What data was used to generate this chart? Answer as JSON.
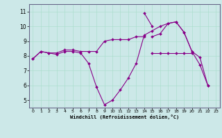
{
  "title": "",
  "xlabel": "Windchill (Refroidissement éolien,°C)",
  "background_color": "#cce8e8",
  "line_color": "#880088",
  "grid_color": "#aadddd",
  "xlim": [
    -0.5,
    23.5
  ],
  "ylim": [
    4.5,
    11.5
  ],
  "xticks": [
    0,
    1,
    2,
    3,
    4,
    5,
    6,
    7,
    8,
    9,
    10,
    11,
    12,
    13,
    14,
    15,
    16,
    17,
    18,
    19,
    20,
    21,
    22,
    23
  ],
  "yticks": [
    5,
    6,
    7,
    8,
    9,
    10,
    11
  ],
  "series": [
    {
      "x": [
        0,
        1,
        2,
        3,
        4,
        5,
        6,
        7,
        8,
        9,
        10,
        11,
        12,
        13,
        14,
        15,
        16,
        17,
        18,
        19,
        20,
        21,
        22
      ],
      "y": [
        7.8,
        8.3,
        8.2,
        8.1,
        8.3,
        8.3,
        8.2,
        7.5,
        5.9,
        4.7,
        5.0,
        5.7,
        6.5,
        7.5,
        9.4,
        9.7,
        10.0,
        10.2,
        10.3,
        9.6,
        8.3,
        7.9,
        6.0
      ]
    },
    {
      "x": [
        14,
        15
      ],
      "y": [
        10.9,
        10.0
      ]
    },
    {
      "x": [
        0,
        1,
        2,
        3,
        4,
        5,
        6,
        7,
        8,
        9,
        10,
        11,
        12,
        13,
        14
      ],
      "y": [
        7.8,
        8.3,
        8.2,
        8.2,
        8.4,
        8.4,
        8.3,
        8.3,
        8.3,
        9.0,
        9.1,
        9.1,
        9.1,
        9.3,
        9.3
      ]
    },
    {
      "x": [
        15,
        16,
        17,
        18,
        19,
        20,
        21,
        22
      ],
      "y": [
        9.3,
        9.5,
        10.2,
        10.3,
        9.6,
        8.3,
        7.4,
        6.0
      ]
    },
    {
      "x": [
        15,
        16,
        17,
        18,
        19,
        20
      ],
      "y": [
        8.2,
        8.2,
        8.2,
        8.2,
        8.2,
        8.2
      ]
    }
  ]
}
